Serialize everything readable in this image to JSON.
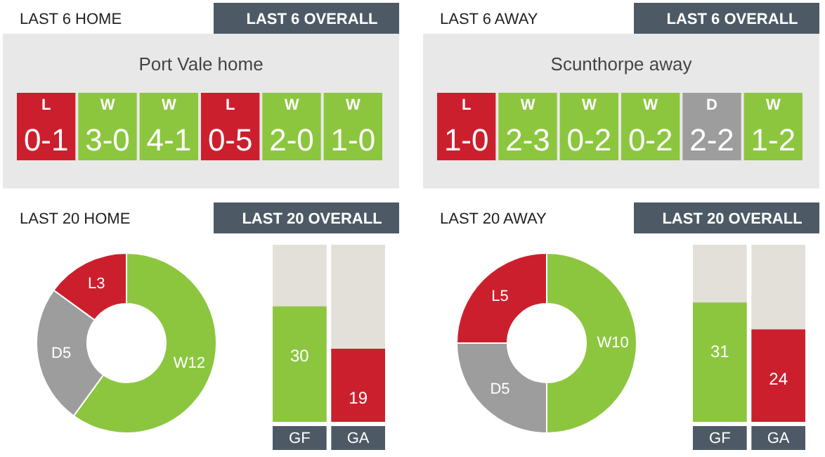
{
  "chart_data": [
    {
      "type": "other",
      "title": "LAST 6 HOME",
      "annotations": [
        "LAST 6 OVERALL"
      ],
      "subtitle": "Port Vale home",
      "categories": [
        "L",
        "W",
        "W",
        "L",
        "W",
        "W"
      ],
      "value_labels": [
        "0-1",
        "3-0",
        "4-1",
        "0-5",
        "2-0",
        "1-0"
      ],
      "colors": [
        "#cc1f2d",
        "#8cc63f",
        "#8cc63f",
        "#cc1f2d",
        "#8cc63f",
        "#8cc63f"
      ]
    },
    {
      "type": "other",
      "title": "LAST 6 AWAY",
      "annotations": [
        "LAST 6 OVERALL"
      ],
      "subtitle": "Scunthorpe away",
      "categories": [
        "L",
        "W",
        "W",
        "W",
        "D",
        "W"
      ],
      "value_labels": [
        "1-0",
        "2-3",
        "0-2",
        "0-2",
        "2-2",
        "1-2"
      ],
      "colors": [
        "#cc1f2d",
        "#8cc63f",
        "#8cc63f",
        "#8cc63f",
        "#9d9d9d",
        "#8cc63f"
      ]
    },
    {
      "type": "donut",
      "title": "LAST 20 HOME",
      "annotations": [
        "LAST 20 OVERALL"
      ],
      "values": [
        12,
        5,
        3
      ],
      "value_labels": [
        "W12",
        "D5",
        "L3"
      ],
      "colors": [
        "#8cc63f",
        "#9d9d9d",
        "#cc1f2d"
      ]
    },
    {
      "type": "bar",
      "categories": [
        "GF",
        "GA"
      ],
      "values": [
        30,
        19
      ],
      "colors": [
        "#8cc63f",
        "#cc1f2d"
      ],
      "ylim": [
        0,
        46
      ],
      "data_labels": true
    },
    {
      "type": "donut",
      "title": "LAST 20 AWAY",
      "annotations": [
        "LAST 20 OVERALL"
      ],
      "values": [
        10,
        5,
        5
      ],
      "value_labels": [
        "W10",
        "D5",
        "L5"
      ],
      "colors": [
        "#8cc63f",
        "#9d9d9d",
        "#cc1f2d"
      ]
    },
    {
      "type": "bar",
      "categories": [
        "GF",
        "GA"
      ],
      "values": [
        31,
        24
      ],
      "colors": [
        "#8cc63f",
        "#cc1f2d"
      ],
      "ylim": [
        0,
        46
      ],
      "data_labels": true
    }
  ]
}
